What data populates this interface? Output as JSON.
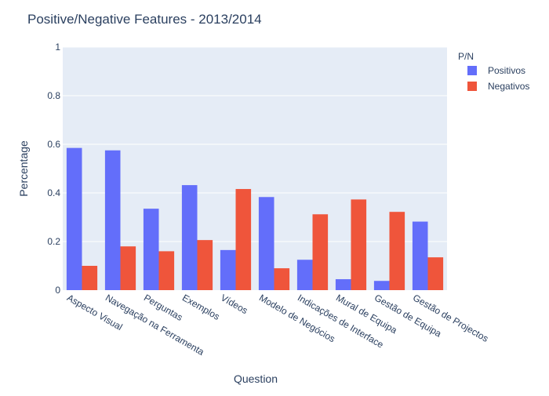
{
  "title": "Positive/Negative Features  - 2013/2014",
  "legend": {
    "title": "P/N"
  },
  "chart_data": {
    "type": "bar",
    "title": "Positive/Negative Features  - 2013/2014",
    "xlabel": "Question",
    "ylabel": "Percentage",
    "ylim": [
      0,
      1
    ],
    "yticks": [
      "0",
      "0.2",
      "0.4",
      "0.6",
      "0.8",
      "1"
    ],
    "grid": true,
    "legend_title": "P/N",
    "legend_position": "top-right",
    "categories": [
      "Aspecto Visual",
      "Navegação na Ferramenta",
      "Perguntas",
      "Exemplos",
      "Vídeos",
      "Modelo de Negócios",
      "Indicações de Interface",
      "Mural de Equipa",
      "Gestão de Equipa",
      "Gestão de Projectos"
    ],
    "series": [
      {
        "name": "Positivos",
        "color": "#636efa",
        "values": [
          0.585,
          0.575,
          0.335,
          0.432,
          0.165,
          0.383,
          0.125,
          0.045,
          0.038,
          0.282
        ]
      },
      {
        "name": "Negativos",
        "color": "#ef553b",
        "values": [
          0.1,
          0.18,
          0.16,
          0.206,
          0.416,
          0.09,
          0.312,
          0.373,
          0.322,
          0.135
        ]
      }
    ]
  }
}
